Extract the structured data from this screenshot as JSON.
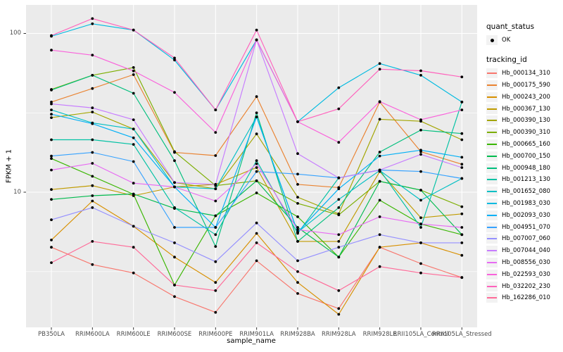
{
  "colors": {
    "panel_bg": "#ebebeb",
    "grid": "#ffffff",
    "tick_mark": "#333333",
    "tick_label": "#4d4d4d",
    "point": "#000000",
    "key_bg": "#f2f2f2"
  },
  "chart_data": {
    "type": "line",
    "title": "",
    "xlabel": "sample_name",
    "ylabel": "FPKM + 1",
    "y_scale": "log10",
    "ylim": [
      1.4,
      150
    ],
    "grid": "on",
    "legend_position": "right",
    "y_ticks": [
      {
        "label": "100",
        "value": 100
      },
      {
        "label": "10",
        "value": 10
      }
    ],
    "y_minor_breaks": [
      31.6,
      3.16
    ],
    "categories": [
      "PB350LA",
      "RRIM600LA",
      "RRIM600LE",
      "RRIM600SE",
      "RRIM600PE",
      "RRIM901LA",
      "RRIM928BA",
      "RRIM928LA",
      "RRIM928LE",
      "RRII105LA_Control",
      "RRII105LA_Stressed"
    ],
    "legend": {
      "quant_title": "quant_status",
      "quant_items": [
        {
          "label": "OK",
          "symbol": "point"
        }
      ],
      "series_title": "tracking_id"
    },
    "series": [
      {
        "name": "Hb_000134_310",
        "color": "#F8766D",
        "values": [
          4.5,
          3.5,
          3.1,
          2.2,
          1.75,
          3.7,
          2.3,
          1.85,
          4.5,
          3.55,
          2.9
        ]
      },
      {
        "name": "Hb_000175_590",
        "color": "#EA8331",
        "values": [
          37,
          45,
          55,
          17.8,
          17,
          40,
          11.2,
          10.7,
          37,
          18,
          15
        ]
      },
      {
        "name": "Hb_000243_200",
        "color": "#D89000",
        "values": [
          5.0,
          8.8,
          6.1,
          3.9,
          2.7,
          5.5,
          2.7,
          1.7,
          4.5,
          4.8,
          4.0
        ]
      },
      {
        "name": "Hb_000367_130",
        "color": "#C09B00",
        "values": [
          10.4,
          11.0,
          9.5,
          10.8,
          11.2,
          14.3,
          4.9,
          4.9,
          13.5,
          6.9,
          7.3
        ]
      },
      {
        "name": "Hb_000390_130",
        "color": "#A3A500",
        "values": [
          29.5,
          32,
          25,
          11.5,
          10.5,
          23.3,
          9.3,
          7.3,
          28.8,
          28,
          21.4
        ]
      },
      {
        "name": "Hb_000390_310",
        "color": "#7CAE00",
        "values": [
          44.4,
          54.5,
          61,
          18,
          11,
          11.8,
          8.5,
          7.2,
          11.7,
          10.3,
          8.1
        ]
      },
      {
        "name": "Hb_000665_160",
        "color": "#39B600",
        "values": [
          16.3,
          12.6,
          9.7,
          2.6,
          7.1,
          9.9,
          7.0,
          3.9,
          8.9,
          6.3,
          5.4
        ]
      },
      {
        "name": "Hb_000700_150",
        "color": "#00BB4E",
        "values": [
          9.0,
          9.5,
          9.75,
          7.9,
          7.1,
          11.8,
          6.0,
          3.9,
          11.7,
          10.3,
          5.4
        ]
      },
      {
        "name": "Hb_000948_180",
        "color": "#00BF7D",
        "values": [
          44,
          54.5,
          42,
          15.8,
          4.55,
          31.6,
          4.9,
          8.0,
          17.9,
          24.6,
          23.4
        ]
      },
      {
        "name": "Hb_001213_130",
        "color": "#00C1A3",
        "values": [
          21.4,
          21.4,
          20,
          8.0,
          5.4,
          15.8,
          5.5,
          12.3,
          13.8,
          6.0,
          37
        ]
      },
      {
        "name": "Hb_001652_080",
        "color": "#00BFC4",
        "values": [
          33,
          27.3,
          25,
          10.8,
          10.5,
          29.8,
          5.6,
          9.0,
          13.7,
          8.9,
          12.2
        ]
      },
      {
        "name": "Hb_001983_030",
        "color": "#00BAE0",
        "values": [
          96,
          115,
          105,
          68,
          33,
          91,
          27.8,
          45.5,
          64.6,
          54.5,
          37
        ]
      },
      {
        "name": "Hb_002093_030",
        "color": "#00B0F6",
        "values": [
          31,
          27,
          22,
          10.8,
          6.0,
          29.8,
          5.6,
          10.5,
          16.9,
          18.4,
          16.6
        ]
      },
      {
        "name": "Hb_004951_070",
        "color": "#35A2FF",
        "values": [
          16.9,
          17.8,
          15.6,
          6.0,
          6.0,
          13.5,
          13,
          12.3,
          13.8,
          13.5,
          12.2
        ]
      },
      {
        "name": "Hb_007007_060",
        "color": "#9590FF",
        "values": [
          6.7,
          8.0,
          6.1,
          4.8,
          3.65,
          6.4,
          3.7,
          4.5,
          5.4,
          4.8,
          4.8
        ]
      },
      {
        "name": "Hb_007044_040",
        "color": "#C77CFF",
        "values": [
          36,
          34,
          28.6,
          11.5,
          11.2,
          91,
          17.5,
          12.3,
          13.8,
          17.3,
          14.3
        ]
      },
      {
        "name": "Hb_008556_030",
        "color": "#E76BF3",
        "values": [
          13.8,
          15.2,
          11.4,
          10.8,
          8.8,
          15.1,
          5.8,
          5.4,
          7.0,
          6.3,
          6.0
        ]
      },
      {
        "name": "Hb_022593_030",
        "color": "#FA62DB",
        "values": [
          78.5,
          73,
          58,
          42.5,
          23.8,
          91,
          27.8,
          20.6,
          37.2,
          28.6,
          33
        ]
      },
      {
        "name": "Hb_032202_230",
        "color": "#FF62BC",
        "values": [
          97,
          124,
          105,
          70,
          33,
          105,
          27.8,
          33.5,
          59.5,
          58.2,
          53.2
        ]
      },
      {
        "name": "Hb_162286_010",
        "color": "#FF6A98",
        "values": [
          3.6,
          4.9,
          4.5,
          2.6,
          2.4,
          4.8,
          3.16,
          2.4,
          3.4,
          3.1,
          2.9
        ]
      }
    ]
  }
}
